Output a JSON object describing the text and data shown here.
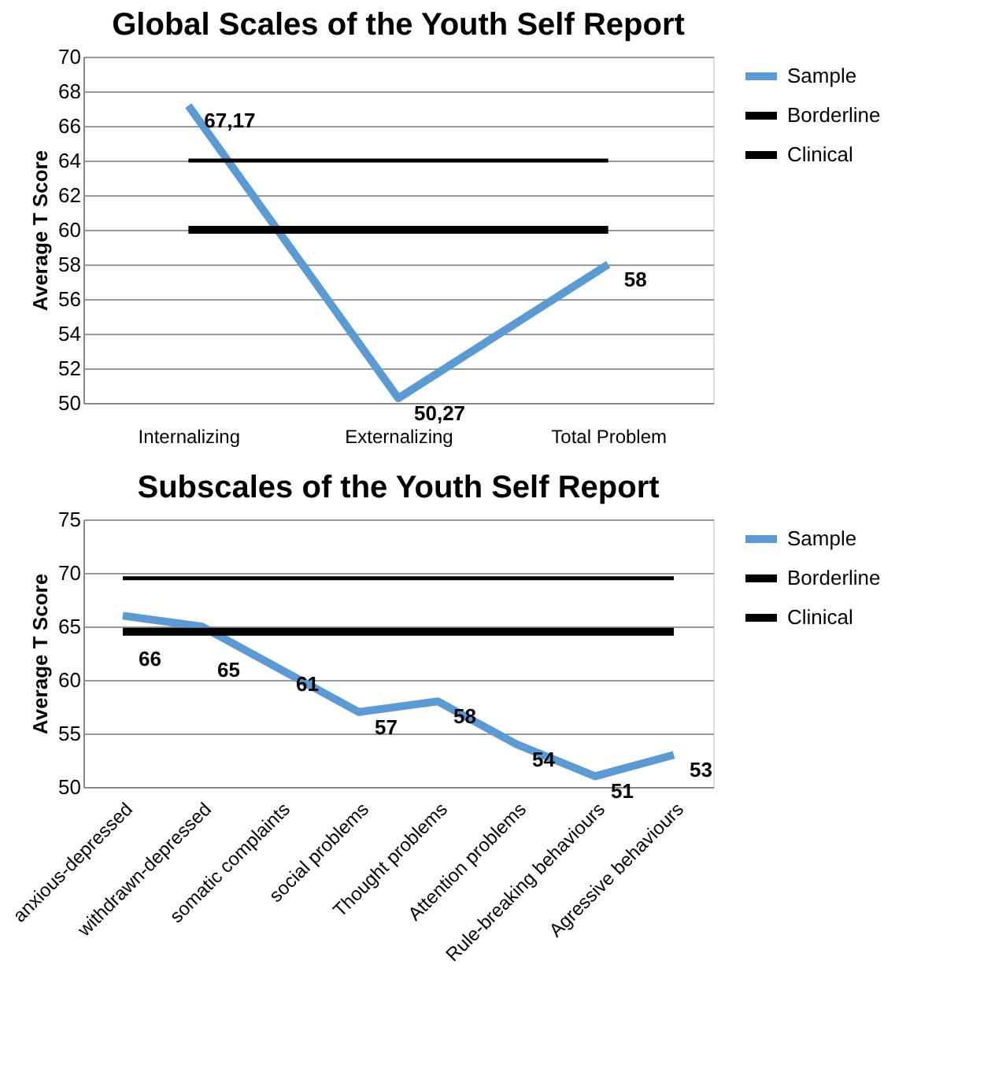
{
  "chart_data": [
    {
      "type": "line",
      "title": "Global Scales of the Youth Self Report",
      "ylabel": "Average T Score",
      "categories": [
        "Internalizing",
        "Externalizing",
        "Total Problem"
      ],
      "ylim": [
        50,
        70
      ],
      "yticks": [
        50,
        52,
        54,
        56,
        58,
        60,
        62,
        64,
        66,
        68,
        70
      ],
      "grid": "y",
      "legend": "right",
      "marker": "none",
      "series": [
        {
          "name": "Sample",
          "color": "#5b9bd5",
          "values": [
            67.17,
            50.27,
            58
          ],
          "value_labels": [
            "67,17",
            "50,27",
            "58"
          ]
        },
        {
          "name": "Borderline",
          "color": "#000000",
          "values": [
            60,
            60,
            60
          ]
        },
        {
          "name": "Clinical",
          "color": "#000000",
          "values": [
            64,
            64,
            64
          ]
        }
      ]
    },
    {
      "type": "line",
      "title": "Subscales of the Youth Self Report",
      "ylabel": "Average T Score",
      "categories": [
        "anxious-depressed",
        "withdrawn-depressed",
        "somatic complaints",
        "social problems",
        "Thought problems",
        "Attention problems",
        "Rule-breaking behaviours",
        "Agressive behaviours"
      ],
      "ylim": [
        50,
        75
      ],
      "yticks": [
        50,
        55,
        60,
        65,
        70,
        75
      ],
      "grid": "y",
      "legend": "right",
      "marker": "none",
      "series": [
        {
          "name": "Sample",
          "color": "#5b9bd5",
          "values": [
            66,
            65,
            61,
            57,
            58,
            54,
            51,
            53
          ],
          "value_labels": [
            "66",
            "65",
            "61",
            "57",
            "58",
            "54",
            "51",
            "53"
          ]
        },
        {
          "name": "Borderline",
          "color": "#000000",
          "values": [
            64.5,
            64.5,
            64.5,
            64.5,
            64.5,
            64.5,
            64.5,
            64.5
          ]
        },
        {
          "name": "Clinical",
          "color": "#000000",
          "values": [
            69.5,
            69.5,
            69.5,
            69.5,
            69.5,
            69.5,
            69.5,
            69.5
          ]
        }
      ]
    }
  ]
}
